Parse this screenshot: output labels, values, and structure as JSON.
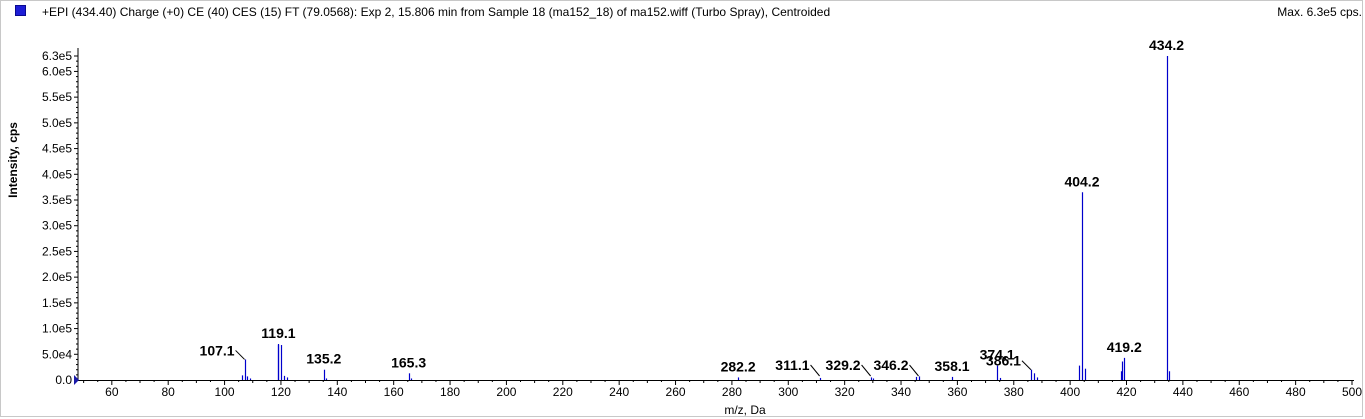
{
  "header": {
    "title": "+EPI (434.40) Charge (+0) CE (40) CES (15) FT (79.0568): Exp 2, 15.806 min from Sample 18 (ma152_18) of ma152.wiff (Turbo Spray), Centroided",
    "max_label": "Max. 6.3e5 cps.",
    "swatch_color": "#1d1dd6"
  },
  "chart_data": {
    "type": "bar",
    "xlabel": "m/z, Da",
    "ylabel": "Intensity, cps",
    "xlim": [
      48,
      500
    ],
    "ylim": [
      0,
      630000
    ],
    "x_ticks": [
      60,
      80,
      100,
      120,
      140,
      160,
      180,
      200,
      220,
      240,
      260,
      280,
      300,
      320,
      340,
      360,
      380,
      400,
      420,
      440,
      460,
      480,
      500
    ],
    "y_ticks": [
      {
        "value": 0,
        "label": "0.0"
      },
      {
        "value": 50000,
        "label": "5.0e4"
      },
      {
        "value": 100000,
        "label": "1.0e5"
      },
      {
        "value": 150000,
        "label": "1.5e5"
      },
      {
        "value": 200000,
        "label": "2.0e5"
      },
      {
        "value": 250000,
        "label": "2.5e5"
      },
      {
        "value": 300000,
        "label": "3.0e5"
      },
      {
        "value": 350000,
        "label": "3.5e5"
      },
      {
        "value": 400000,
        "label": "4.0e5"
      },
      {
        "value": 450000,
        "label": "4.5e5"
      },
      {
        "value": 500000,
        "label": "5.0e5"
      },
      {
        "value": 550000,
        "label": "5.5e5"
      },
      {
        "value": 600000,
        "label": "6.0e5"
      },
      {
        "value": 630000,
        "label": "6.3e5"
      }
    ],
    "color": "#0000cc",
    "peaks": [
      {
        "mz": 106.2,
        "intensity": 9000
      },
      {
        "mz": 107.1,
        "intensity": 40000
      },
      {
        "mz": 108.0,
        "intensity": 7000
      },
      {
        "mz": 109.1,
        "intensity": 3000
      },
      {
        "mz": 118.8,
        "intensity": 68000
      },
      {
        "mz": 119.1,
        "intensity": 70000
      },
      {
        "mz": 120.0,
        "intensity": 68000
      },
      {
        "mz": 121.1,
        "intensity": 8000
      },
      {
        "mz": 122.0,
        "intensity": 5000
      },
      {
        "mz": 135.2,
        "intensity": 20000
      },
      {
        "mz": 136.1,
        "intensity": 3000
      },
      {
        "mz": 165.3,
        "intensity": 13000
      },
      {
        "mz": 166.2,
        "intensity": 3000
      },
      {
        "mz": 282.2,
        "intensity": 5000
      },
      {
        "mz": 311.1,
        "intensity": 4000
      },
      {
        "mz": 329.2,
        "intensity": 5000
      },
      {
        "mz": 330.1,
        "intensity": 3000
      },
      {
        "mz": 345.4,
        "intensity": 6000
      },
      {
        "mz": 346.2,
        "intensity": 7000
      },
      {
        "mz": 358.1,
        "intensity": 6000
      },
      {
        "mz": 374.1,
        "intensity": 28000
      },
      {
        "mz": 375.0,
        "intensity": 4000
      },
      {
        "mz": 386.1,
        "intensity": 20000
      },
      {
        "mz": 387.2,
        "intensity": 13000
      },
      {
        "mz": 388.1,
        "intensity": 5000
      },
      {
        "mz": 403.3,
        "intensity": 28000
      },
      {
        "mz": 404.2,
        "intensity": 365000
      },
      {
        "mz": 405.1,
        "intensity": 22000
      },
      {
        "mz": 417.9,
        "intensity": 17000
      },
      {
        "mz": 418.5,
        "intensity": 36000
      },
      {
        "mz": 419.2,
        "intensity": 43000
      },
      {
        "mz": 434.2,
        "intensity": 630000
      },
      {
        "mz": 435.1,
        "intensity": 17000
      }
    ],
    "peak_labels": [
      {
        "text": "107.1",
        "mz": 107.1,
        "intensity": 40000,
        "leader": true
      },
      {
        "text": "119.1",
        "mz": 119.1,
        "intensity": 70000,
        "leader": false
      },
      {
        "text": "135.2",
        "mz": 135.2,
        "intensity": 20000,
        "leader": false
      },
      {
        "text": "165.3",
        "mz": 165.3,
        "intensity": 13000,
        "leader": false
      },
      {
        "text": "282.2",
        "mz": 282.2,
        "intensity": 5000,
        "leader": false
      },
      {
        "text": "311.1",
        "mz": 311.1,
        "intensity": 4000,
        "leader": true
      },
      {
        "text": "329.2",
        "mz": 329.2,
        "intensity": 5000,
        "leader": true
      },
      {
        "text": "346.2",
        "mz": 346.2,
        "intensity": 7000,
        "leader": true
      },
      {
        "text": "358.1",
        "mz": 358.1,
        "intensity": 6000,
        "leader": false
      },
      {
        "text": "374.1",
        "mz": 374.1,
        "intensity": 28000,
        "leader": false
      },
      {
        "text": "386.1",
        "mz": 386.1,
        "intensity": 20000,
        "leader": true
      },
      {
        "text": "404.2",
        "mz": 404.2,
        "intensity": 365000,
        "leader": false
      },
      {
        "text": "419.2",
        "mz": 419.2,
        "intensity": 43000,
        "leader": false
      },
      {
        "text": "434.2",
        "mz": 434.2,
        "intensity": 630000,
        "leader": false
      }
    ]
  }
}
